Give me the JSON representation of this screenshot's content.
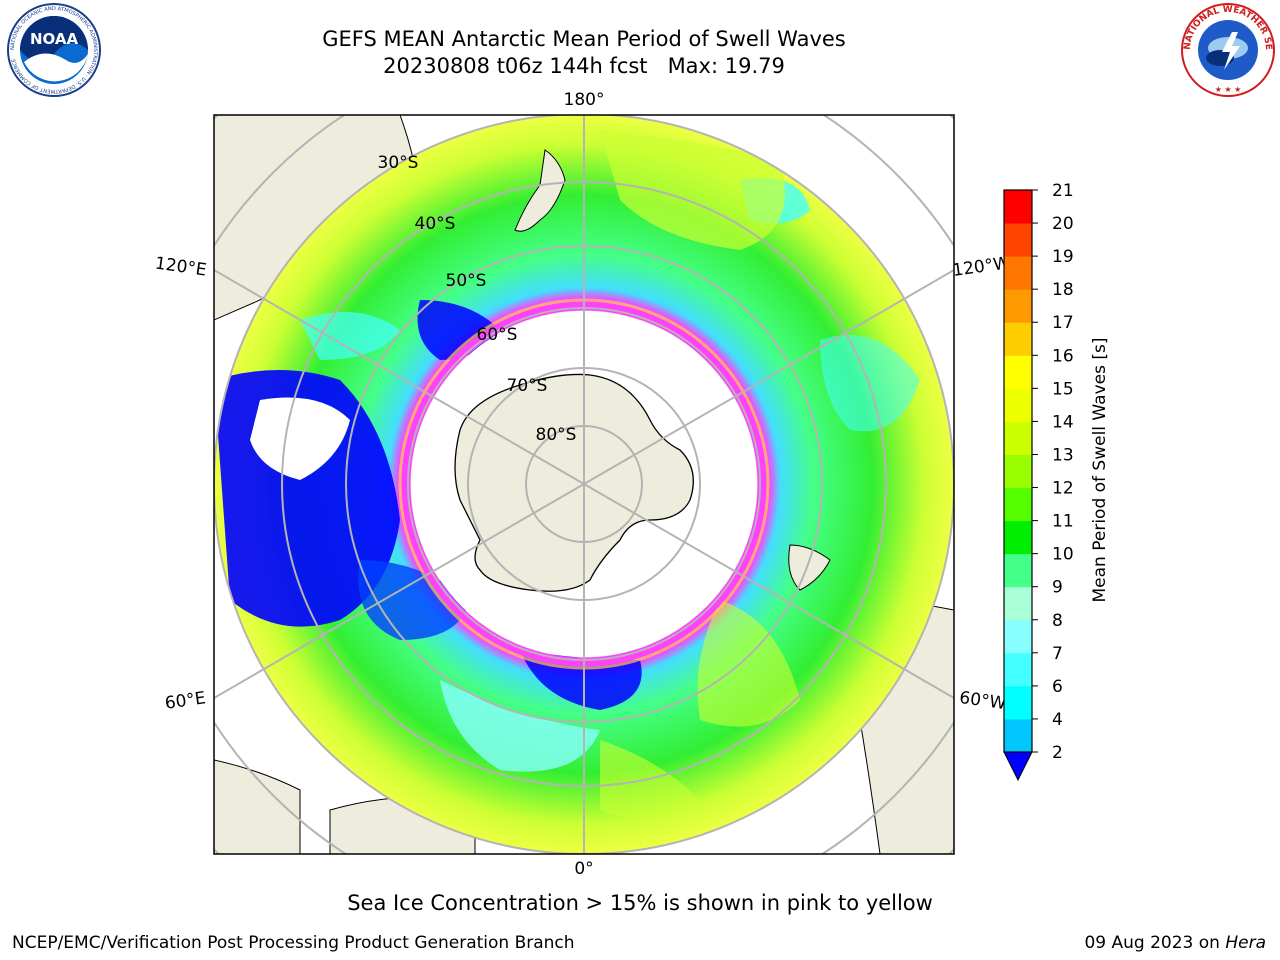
{
  "header": {
    "title_line1": "GEFS MEAN Antarctic Mean Period of Swell Waves",
    "title_line2": "20230808 t06z 144h fcst   Max: 19.79"
  },
  "logos": {
    "noaa": {
      "text": "NOAA",
      "icon": "noaa-logo-icon",
      "ring_text": "NATIONAL OCEANIC AND ATMOSPHERIC ADMINISTRATION · U.S. DEPARTMENT OF COMMERCE"
    },
    "nws": {
      "icon": "nws-logo-icon",
      "ring_text": "NATIONAL WEATHER SERVICE"
    }
  },
  "map": {
    "projection": "south-polar-stereographic",
    "longitude_labels": {
      "top": "180°",
      "bottom": "0°",
      "left_upper": "120°E",
      "left_lower": "60°E",
      "right_upper": "120°W",
      "right_lower": "60°W"
    },
    "latitude_labels": [
      "30°S",
      "40°S",
      "50°S",
      "60°S",
      "70°S",
      "80°S"
    ],
    "colors": {
      "land": "#eeecdc",
      "ocean_low": "#0000ff",
      "ocean_mid": "#00ff00",
      "ocean_high": "#ffff00",
      "sea_ice_edge": "#ff40ff",
      "grid": "#b4b4b4"
    }
  },
  "colorbar": {
    "label": "Mean Period of Swell Waves [s]",
    "ticks": [
      "2",
      "4",
      "6",
      "7",
      "8",
      "9",
      "10",
      "11",
      "12",
      "13",
      "14",
      "15",
      "16",
      "17",
      "18",
      "19",
      "20",
      "21"
    ],
    "colors": [
      "#0064ff",
      "#00c8ff",
      "#00ffff",
      "#44ffff",
      "#88ffff",
      "#a8ffd8",
      "#44ff88",
      "#00ee00",
      "#55ff00",
      "#99ff00",
      "#ccff00",
      "#eeff00",
      "#ffff00",
      "#ffcc00",
      "#ff9900",
      "#ff7700",
      "#ff4400",
      "#ff0000"
    ],
    "extend_color": "#0000ff"
  },
  "caption": "Sea Ice Concentration > 15% is shown in pink to yellow",
  "footer": {
    "left": "NCEP/EMC/Verification Post Processing Product Generation Branch",
    "right_date": "09 Aug 2023 on ",
    "right_host": "Hera"
  }
}
